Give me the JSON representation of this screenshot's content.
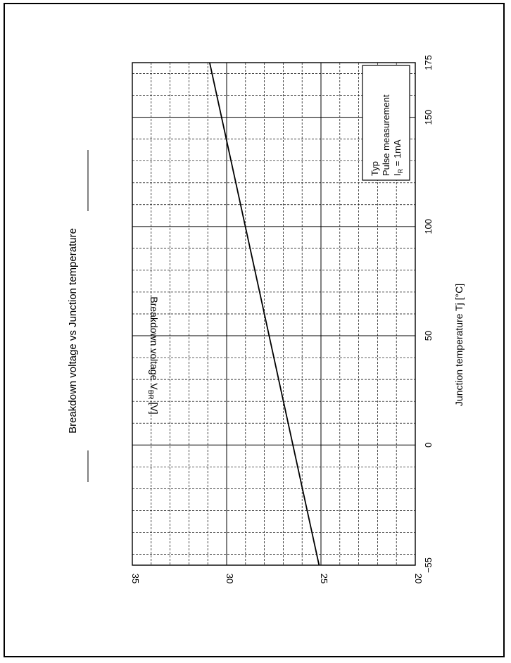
{
  "chart_data": {
    "type": "line",
    "title": "Breakdown voltage vs Junction temperature",
    "xlabel": "Junction temperature   Tj  [°C]",
    "ylabel_prefix": "Breakdown voltage  V",
    "ylabel_sub": "BR",
    "ylabel_suffix": "  [V]",
    "xlim": [
      -55,
      175
    ],
    "ylim": [
      20,
      35
    ],
    "x_ticks": [
      -55,
      0,
      50,
      100,
      150,
      175
    ],
    "y_ticks": [
      20,
      25,
      30,
      35
    ],
    "x_tick_labels": [
      "−55",
      "0",
      "50",
      "100",
      "150",
      "175"
    ],
    "y_tick_labels": [
      "20",
      "25",
      "30",
      "35"
    ],
    "x_major_grid": [
      0,
      50,
      100,
      150
    ],
    "x_minor_step": 10,
    "y_minor_step": 1,
    "grid": true,
    "legend_position": "top-right",
    "annotation": {
      "line1": "Typ",
      "line2": "Pulse  measurement",
      "line3_prefix": "I",
      "line3_sub": "R",
      "line3_suffix": " = 1mA"
    },
    "series": [
      {
        "x": [
          -55,
          175
        ],
        "y": [
          25.1,
          30.9
        ],
        "color": "#000000"
      }
    ],
    "orientation": "rotated 90° counter-clockwise on page"
  }
}
